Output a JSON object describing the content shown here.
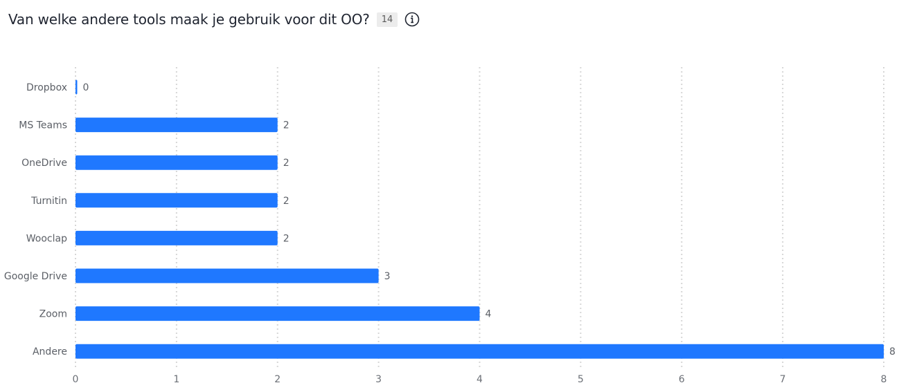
{
  "question": {
    "title": "Van welke andere tools maak je gebruik voor dit OO?",
    "response_count": "14",
    "info_icon": "info-icon"
  },
  "colors": {
    "bar": "#1f78ff",
    "grid": "#d6d6d6",
    "text": "#5b5f66"
  },
  "chart_data": {
    "type": "bar",
    "orientation": "horizontal",
    "title": "Van welke andere tools maak je gebruik voor dit OO?",
    "categories": [
      "Dropbox",
      "MS Teams",
      "OneDrive",
      "Turnitin",
      "Wooclap",
      "Google Drive",
      "Zoom",
      "Andere"
    ],
    "values": [
      0,
      2,
      2,
      2,
      2,
      3,
      4,
      8
    ],
    "xlim": [
      0,
      8
    ],
    "xticks": [
      0,
      1,
      2,
      3,
      4,
      5,
      6,
      7,
      8
    ],
    "grid": "vertical dotted",
    "data_labels": true
  }
}
